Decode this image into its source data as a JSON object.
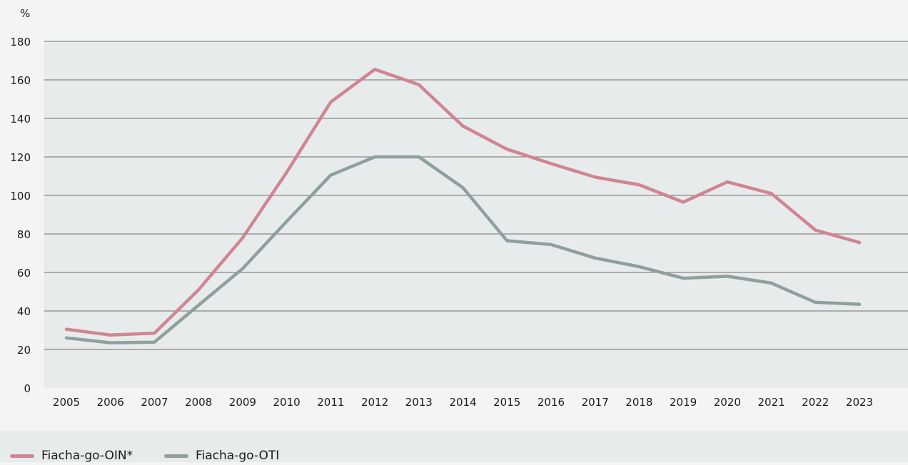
{
  "chart_data": {
    "type": "line",
    "unit_label": "%",
    "x": [
      "2005",
      "2006",
      "2007",
      "2008",
      "2009",
      "2010",
      "2011",
      "2012",
      "2013",
      "2014",
      "2015",
      "2016",
      "2017",
      "2018",
      "2019",
      "2020",
      "2021",
      "2022",
      "2023"
    ],
    "ylim": [
      0,
      180
    ],
    "yticks": [
      0,
      20,
      40,
      60,
      80,
      100,
      120,
      140,
      160,
      180
    ],
    "grid": true,
    "legend_position": "bottom",
    "series": [
      {
        "name": "Fiacha-go-OIN*",
        "color": "#d08592",
        "values": [
          30.5,
          27.5,
          28.5,
          51,
          78,
          112,
          148.5,
          165.5,
          157.5,
          136,
          124,
          116.5,
          109.5,
          105.5,
          96.5,
          107,
          101,
          82,
          75.5
        ]
      },
      {
        "name": "Fiacha-go-OTI",
        "color": "#8f9f9f",
        "values": [
          26,
          23.5,
          23.8,
          43,
          62,
          86.5,
          110.5,
          120,
          120,
          104,
          76.5,
          74.5,
          67.5,
          63,
          57,
          58,
          54.5,
          44.5,
          43.5
        ]
      }
    ]
  }
}
